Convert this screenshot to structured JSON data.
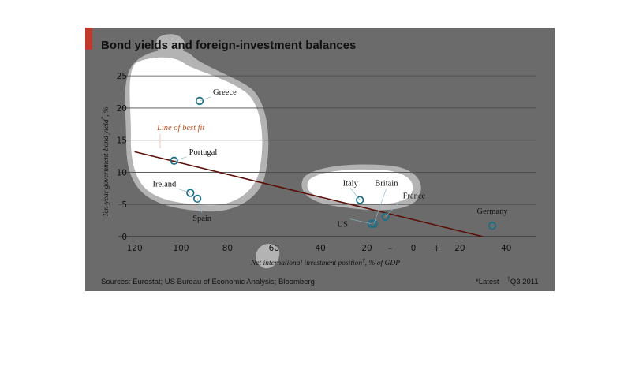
{
  "chart_data": {
    "type": "scatter",
    "title": "Bond yields and foreign-investment balances",
    "xlabel": "Net international investment position",
    "xlabel_suffix": ", % of GDP",
    "ylabel": "Ten-year government-bond yield",
    "ylabel_suffix": ", %",
    "x_ticks": [
      "120",
      "100",
      "80",
      "60",
      "40",
      "20",
      "–",
      "0",
      "+",
      "20",
      "40"
    ],
    "x_tick_values": [
      -120,
      -100,
      -80,
      -60,
      -40,
      -20,
      -10,
      0,
      10,
      20,
      40
    ],
    "y_ticks": [
      "0",
      "5",
      "10",
      "15",
      "20",
      "25"
    ],
    "y_tick_values": [
      0,
      5,
      10,
      15,
      20,
      25
    ],
    "xlim": [
      -127,
      53
    ],
    "ylim": [
      0,
      26
    ],
    "grid": true,
    "points": [
      {
        "label": "Greece",
        "x": -92,
        "y": 21.1
      },
      {
        "label": "Portugal",
        "x": -103,
        "y": 11.8
      },
      {
        "label": "Ireland",
        "x": -96,
        "y": 6.8
      },
      {
        "label": "Spain",
        "x": -93,
        "y": 5.9
      },
      {
        "label": "Italy",
        "x": -23,
        "y": 5.7
      },
      {
        "label": "Britain",
        "x": -17,
        "y": 2.0
      },
      {
        "label": "US",
        "x": -18,
        "y": 2.0
      },
      {
        "label": "France",
        "x": -12,
        "y": 3.1
      },
      {
        "label": "Germany",
        "x": 34,
        "y": 1.7
      }
    ],
    "trend_line": {
      "label": "Line of best fit",
      "x": [
        -120,
        30
      ],
      "y": [
        13.2,
        0
      ]
    },
    "footnote_latest": "*Latest",
    "footnote_q": "Q3 2011",
    "source": "Sources: Eurostat; US Bureau of Economic Analysis; Bloomberg"
  },
  "colors": {
    "background": "#6b6b6b",
    "accent": "#c0392b",
    "marker": "#1a6f86",
    "trend": "#5a0f08",
    "annotation": "#c0562a",
    "gridline": "#4a4a4a",
    "highlight": "#ffffff"
  }
}
